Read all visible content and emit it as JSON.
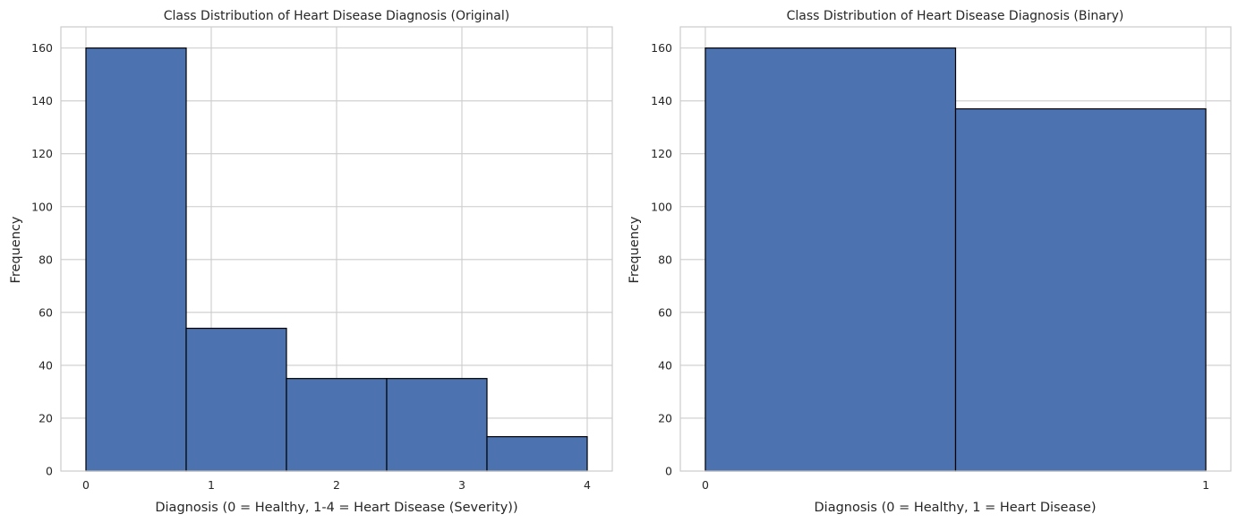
{
  "chart_data": [
    {
      "type": "bar",
      "subtype": "histogram",
      "title": "Class Distribution of Heart Disease Diagnosis (Original)",
      "xlabel": "Diagnosis (0 = Healthy, 1-4 = Heart Disease (Severity))",
      "ylabel": "Frequency",
      "bin_edges": [
        0,
        0.8,
        1.6,
        2.4,
        3.2,
        4.0
      ],
      "values": [
        160,
        54,
        35,
        35,
        13
      ],
      "xlim": [
        -0.2,
        4.2
      ],
      "ylim": [
        0,
        168
      ],
      "xticks": [
        0,
        1,
        2,
        3,
        4
      ],
      "yticks": [
        0,
        20,
        40,
        60,
        80,
        100,
        120,
        140,
        160
      ],
      "grid": true,
      "color": "#4c72b0",
      "edgecolor": "#000000"
    },
    {
      "type": "bar",
      "subtype": "histogram",
      "title": "Class Distribution of Heart Disease Diagnosis (Binary)",
      "xlabel": "Diagnosis (0 = Healthy, 1 = Heart Disease)",
      "ylabel": "Frequency",
      "bin_edges": [
        0,
        0.5,
        1.0
      ],
      "values": [
        160,
        137
      ],
      "xlim": [
        -0.05,
        1.05
      ],
      "ylim": [
        0,
        168
      ],
      "xticks": [
        0,
        1
      ],
      "yticks": [
        0,
        20,
        40,
        60,
        80,
        100,
        120,
        140,
        160
      ],
      "grid": true,
      "color": "#4c72b0",
      "edgecolor": "#000000"
    }
  ]
}
